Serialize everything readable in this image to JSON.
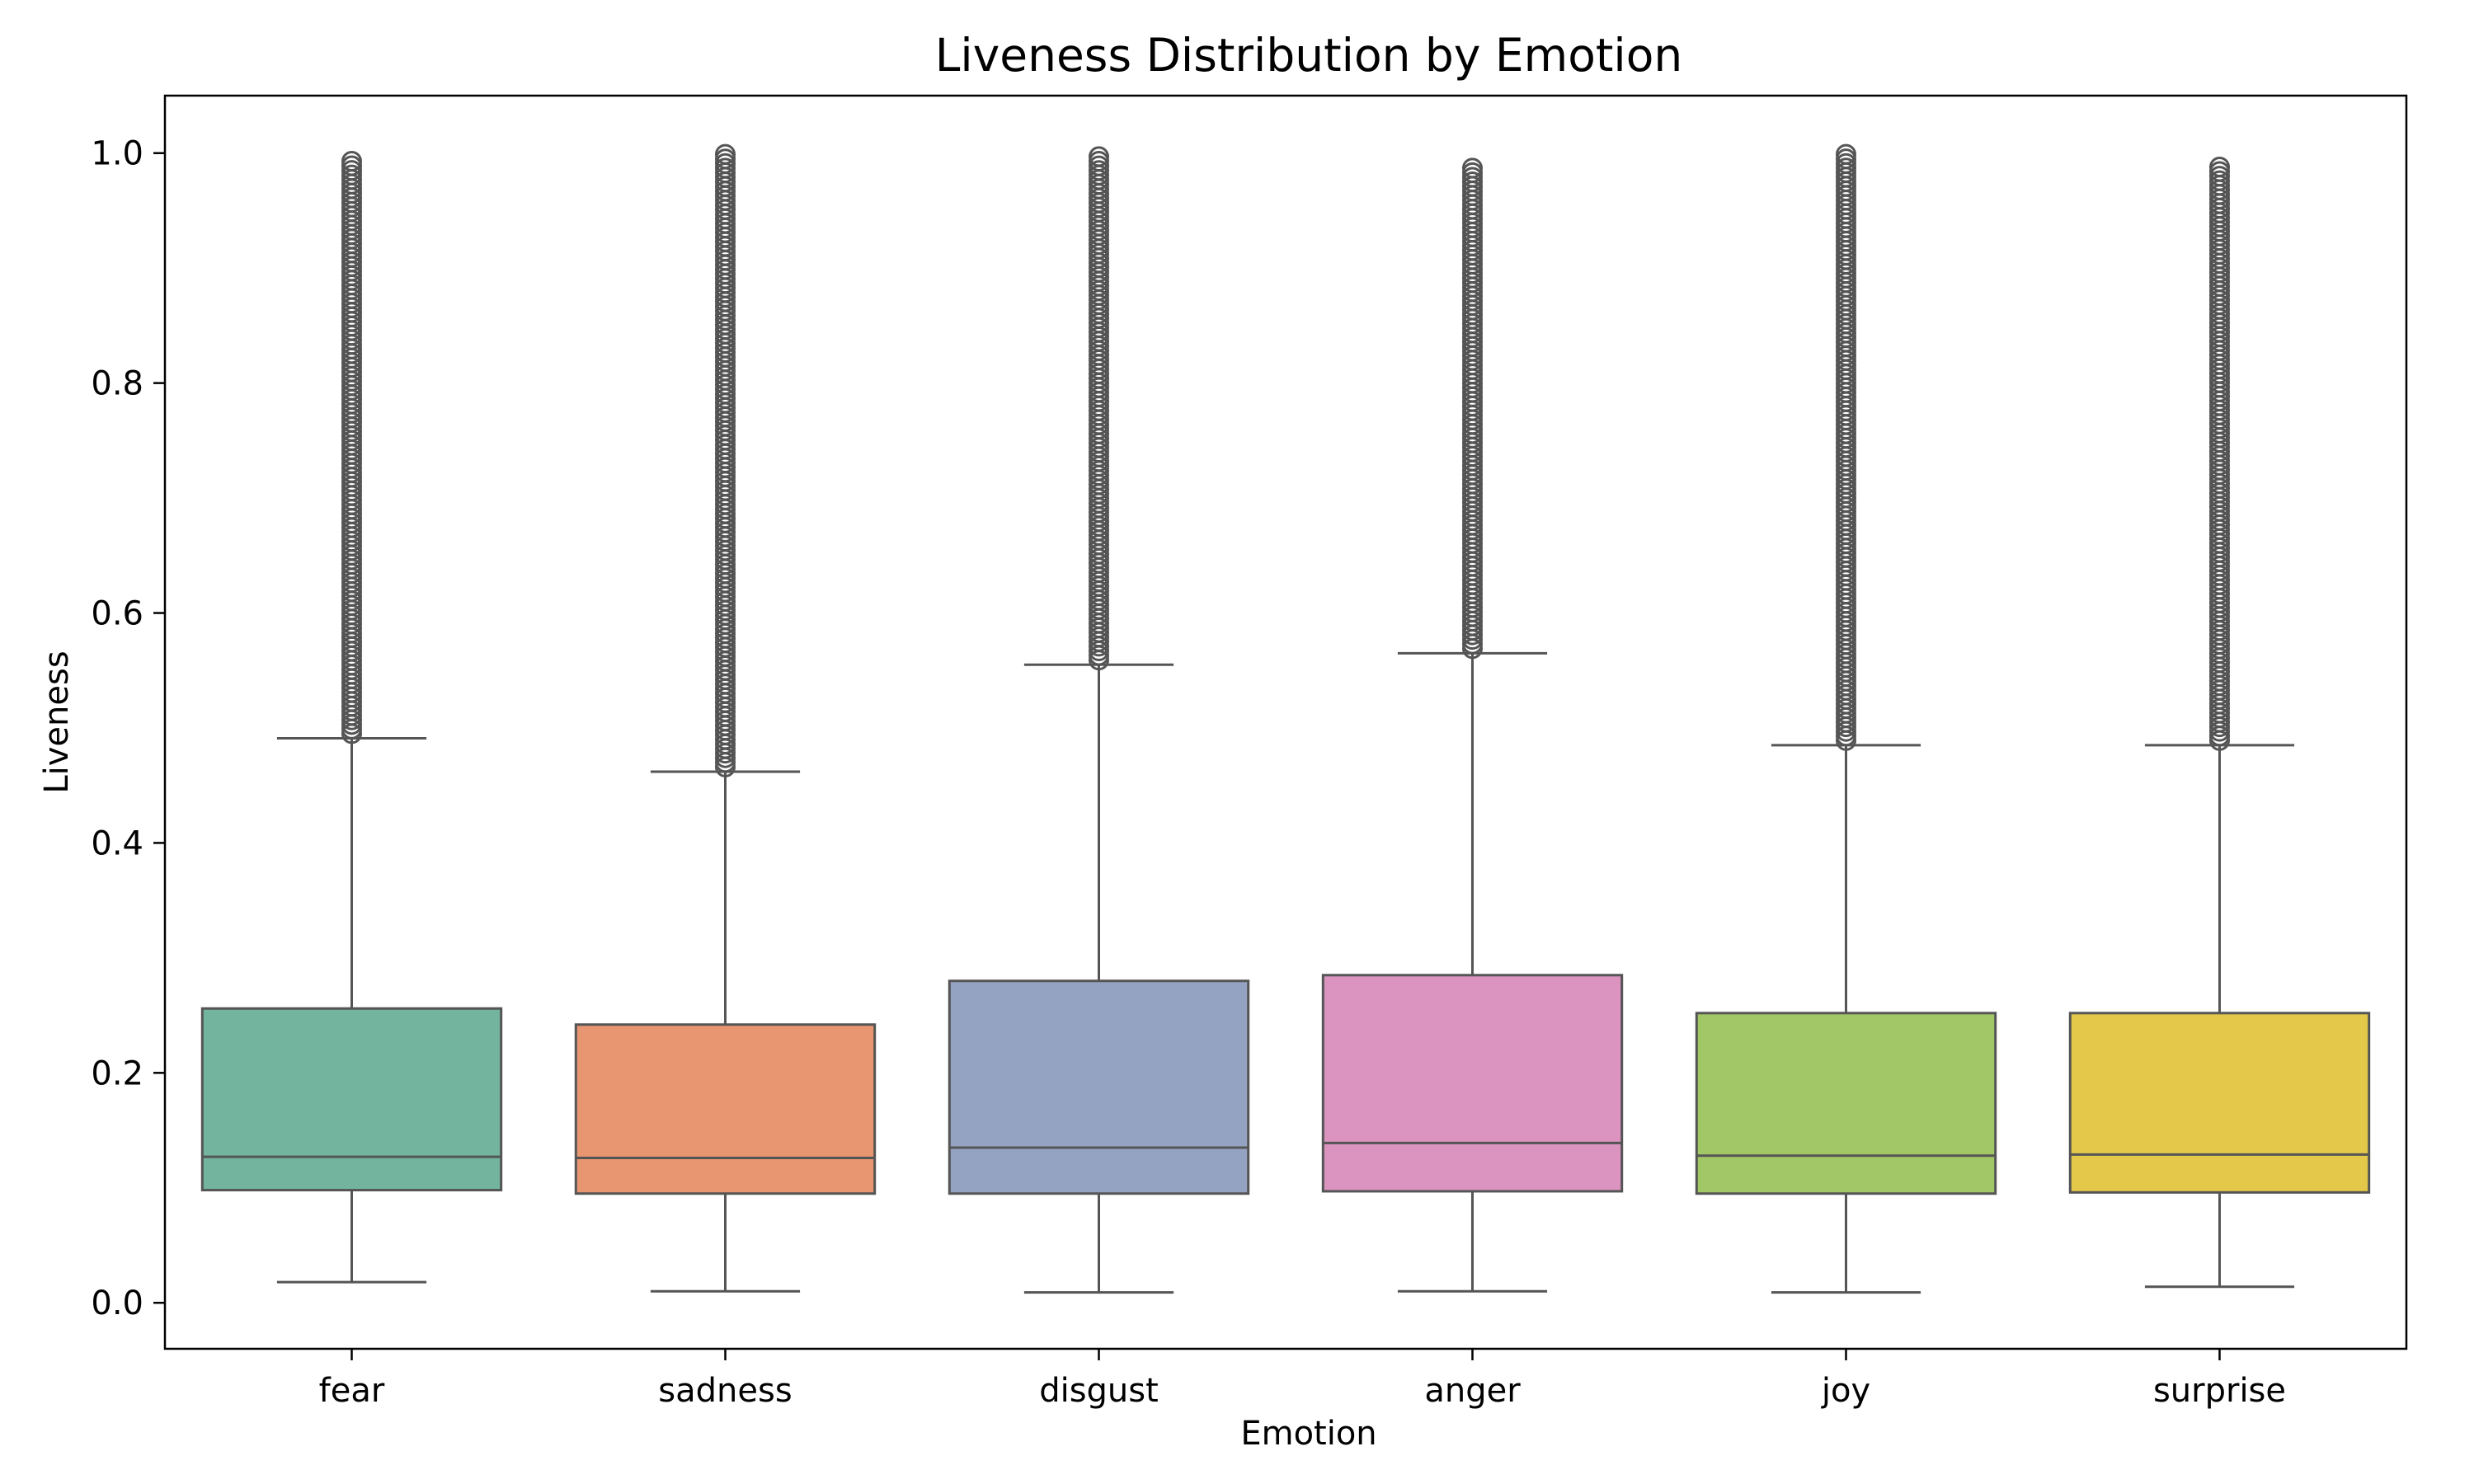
{
  "chart_data": {
    "type": "box",
    "title": "Liveness Distribution by Emotion",
    "xlabel": "Emotion",
    "ylabel": "Liveness",
    "ylim": [
      -0.04,
      1.05
    ],
    "yticks": [
      "0.0",
      "0.2",
      "0.4",
      "0.6",
      "0.8",
      "1.0"
    ],
    "ytick_values": [
      0.0,
      0.2,
      0.4,
      0.6,
      0.8,
      1.0
    ],
    "categories": [
      "fear",
      "sadness",
      "disgust",
      "anger",
      "joy",
      "surprise"
    ],
    "colors": [
      "#72b49e",
      "#e89572",
      "#94a3c2",
      "#db94bf",
      "#a2c766",
      "#e3c84a"
    ],
    "line_color": "#555555",
    "boxes": [
      {
        "category": "fear",
        "whisker_low": 0.018,
        "q1": 0.098,
        "median": 0.127,
        "q3": 0.256,
        "whisker_high": 0.491,
        "outlier_max": 0.993
      },
      {
        "category": "sadness",
        "whisker_low": 0.01,
        "q1": 0.095,
        "median": 0.126,
        "q3": 0.242,
        "whisker_high": 0.462,
        "outlier_max": 0.999
      },
      {
        "category": "disgust",
        "whisker_low": 0.009,
        "q1": 0.095,
        "median": 0.135,
        "q3": 0.28,
        "whisker_high": 0.555,
        "outlier_max": 0.997
      },
      {
        "category": "anger",
        "whisker_low": 0.01,
        "q1": 0.097,
        "median": 0.139,
        "q3": 0.285,
        "whisker_high": 0.565,
        "outlier_max": 0.987
      },
      {
        "category": "joy",
        "whisker_low": 0.009,
        "q1": 0.095,
        "median": 0.128,
        "q3": 0.252,
        "whisker_high": 0.485,
        "outlier_max": 0.999
      },
      {
        "category": "surprise",
        "whisker_low": 0.014,
        "q1": 0.096,
        "median": 0.129,
        "q3": 0.252,
        "whisker_high": 0.485,
        "outlier_max": 0.988
      }
    ],
    "grid": false,
    "legend": "none"
  }
}
